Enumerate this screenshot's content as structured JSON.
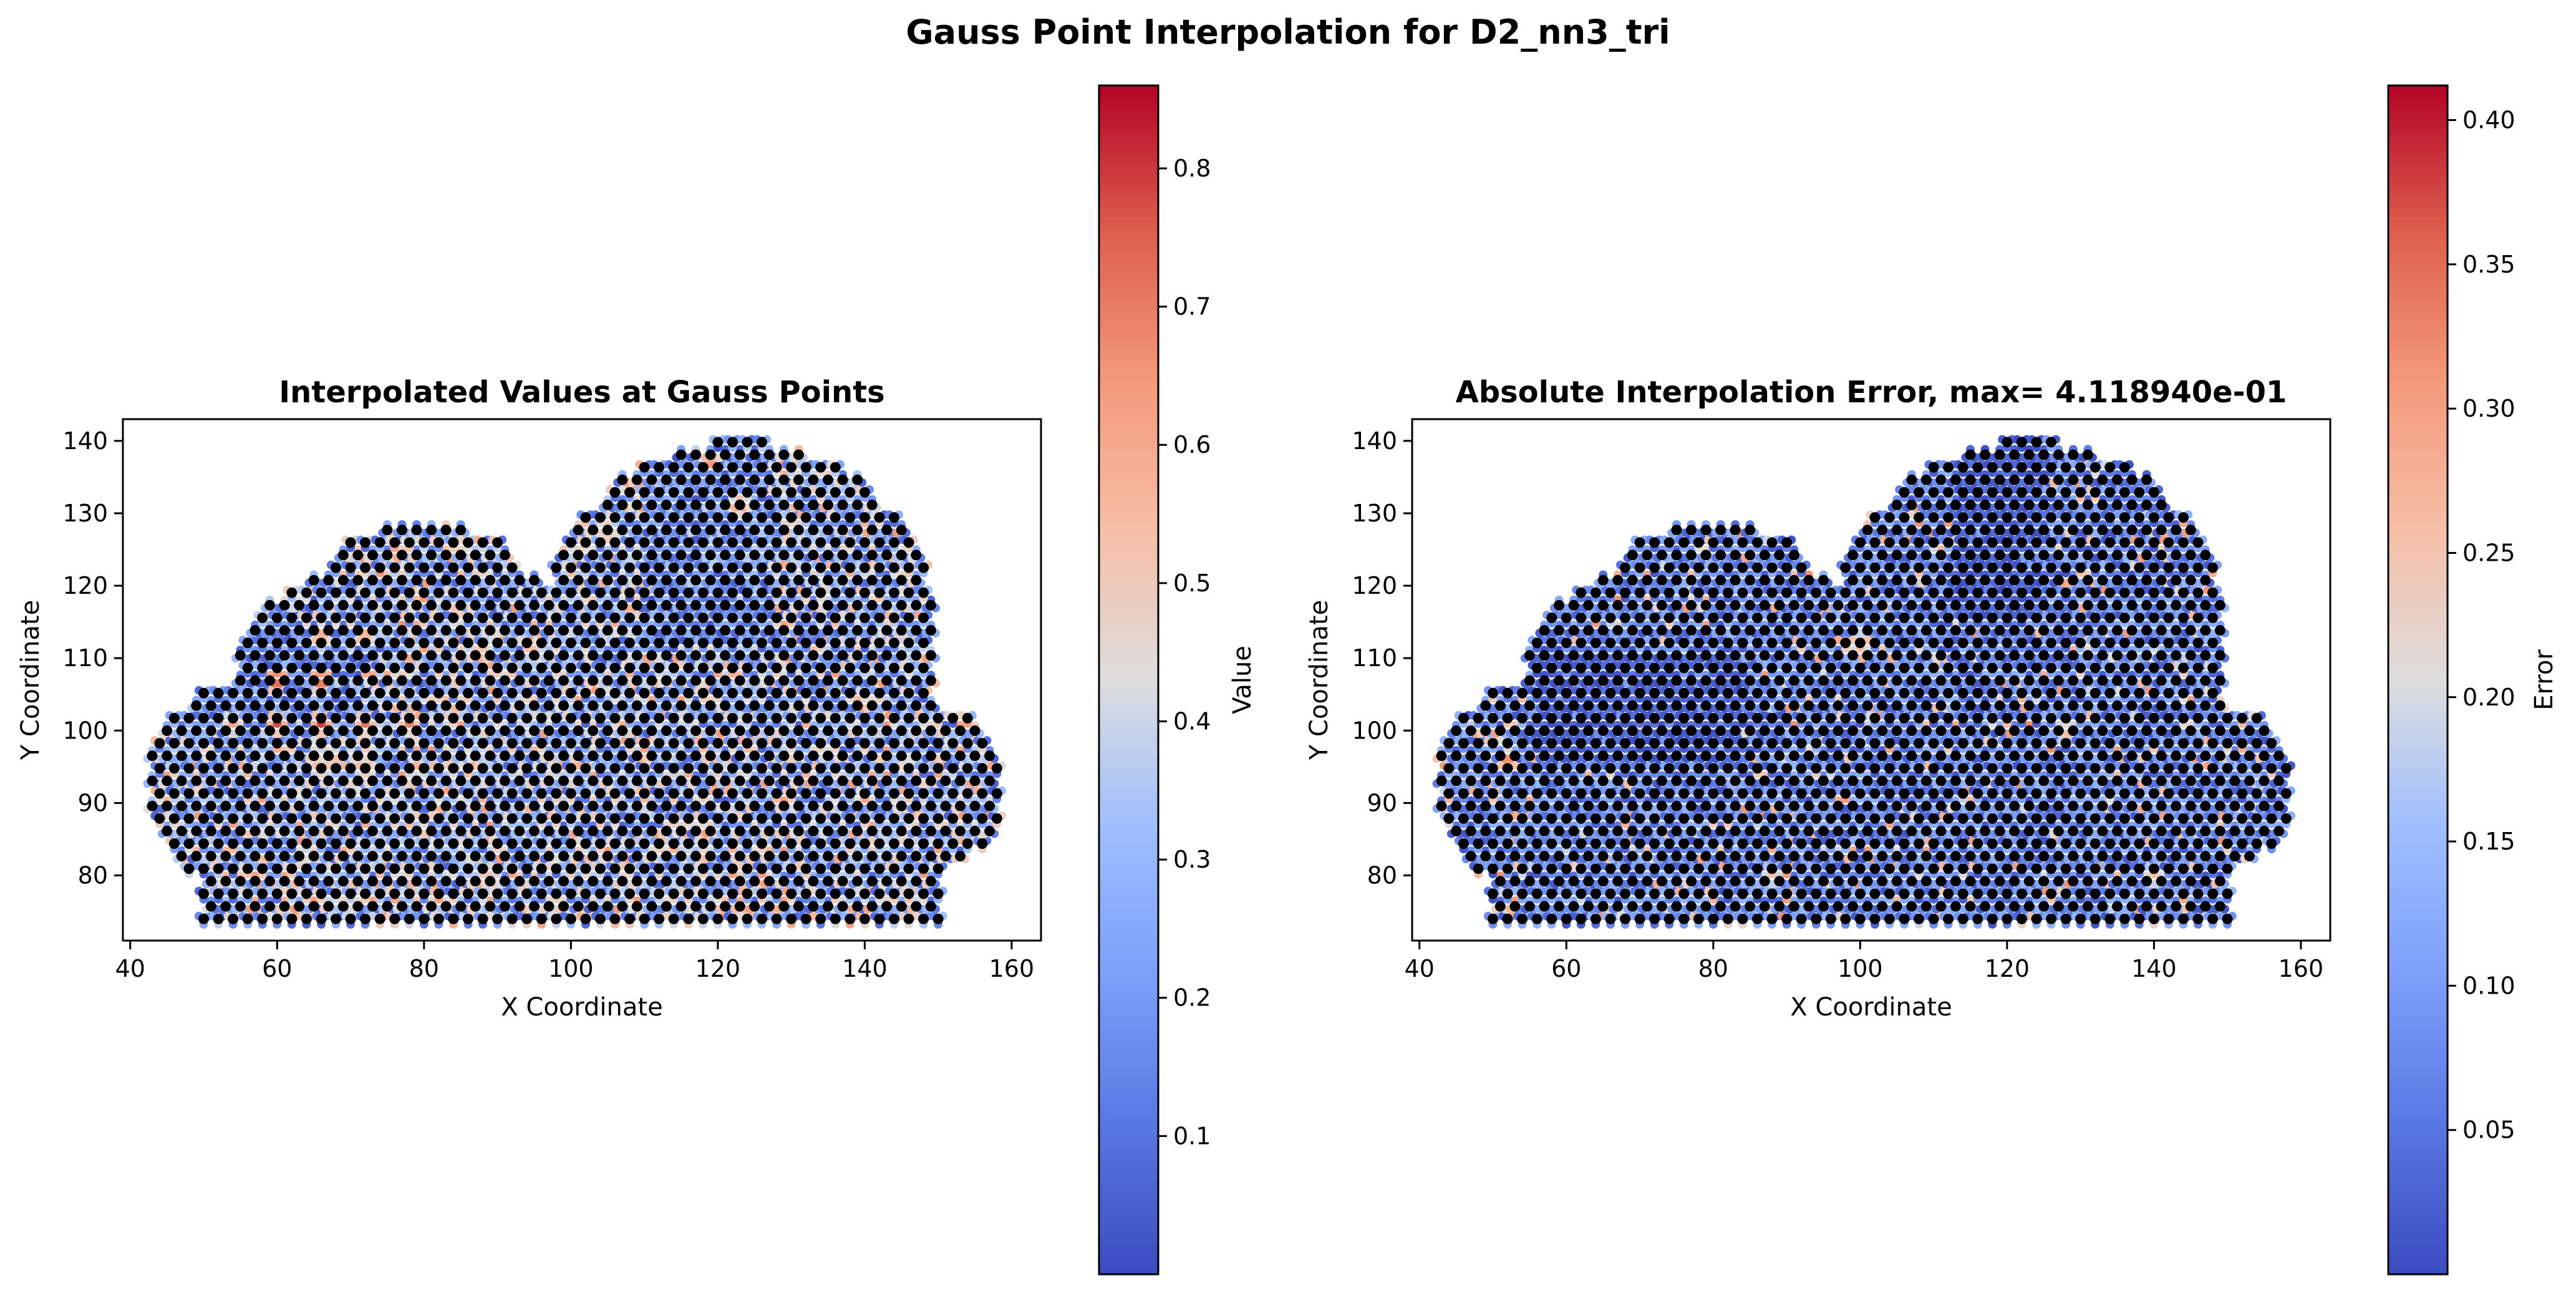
{
  "figure": {
    "title": "Gauss Point Interpolation for D2_nn3_tri"
  },
  "colormap": {
    "name": "coolwarm",
    "low": "#3b4cc0",
    "mid": "#dddddd",
    "high": "#b40426"
  },
  "chart_data": [
    {
      "type": "scatter",
      "title": "Interpolated Values at Gauss Points",
      "xlabel": "X Coordinate",
      "ylabel": "Y Coordinate",
      "xlim": [
        39,
        164
      ],
      "ylim": [
        71,
        143
      ],
      "xticks": [
        40,
        60,
        80,
        100,
        120,
        140,
        160
      ],
      "yticks": [
        80,
        90,
        100,
        110,
        120,
        130,
        140
      ],
      "grid": false,
      "domain_shape": "cloud",
      "node_color": "#000000",
      "colorbar": {
        "label": "Value",
        "range": [
          0.0,
          0.86
        ],
        "ticks": [
          0.1,
          0.2,
          0.3,
          0.4,
          0.5,
          0.6,
          0.7,
          0.8
        ]
      },
      "hotspots": [
        {
          "x": 60,
          "y": 107,
          "value": 0.85
        },
        {
          "x": 66,
          "y": 107,
          "value": 0.82
        },
        {
          "x": 60,
          "y": 101,
          "value": 0.78
        },
        {
          "x": 66,
          "y": 101,
          "value": 0.8
        },
        {
          "x": 72,
          "y": 101,
          "value": 0.72
        },
        {
          "x": 78,
          "y": 101,
          "value": 0.7
        },
        {
          "x": 66,
          "y": 113,
          "value": 0.68
        },
        {
          "x": 72,
          "y": 113,
          "value": 0.66
        },
        {
          "x": 54,
          "y": 101,
          "value": 0.62
        },
        {
          "x": 66,
          "y": 95,
          "value": 0.64
        },
        {
          "x": 72,
          "y": 95,
          "value": 0.66
        },
        {
          "x": 79,
          "y": 95,
          "value": 0.62
        },
        {
          "x": 119,
          "y": 137,
          "value": 0.72
        },
        {
          "x": 123,
          "y": 131,
          "value": 0.68
        }
      ]
    },
    {
      "type": "scatter",
      "title": "Absolute Interpolation Error, max= 4.118940e-01",
      "xlabel": "X Coordinate",
      "ylabel": "Y Coordinate",
      "xlim": [
        39,
        164
      ],
      "ylim": [
        71,
        143
      ],
      "xticks": [
        40,
        60,
        80,
        100,
        120,
        140,
        160
      ],
      "yticks": [
        80,
        90,
        100,
        110,
        120,
        130,
        140
      ],
      "grid": false,
      "domain_shape": "cloud",
      "node_color": "#000000",
      "max_error": 0.411894,
      "colorbar": {
        "label": "Error",
        "range": [
          0.0,
          0.412
        ],
        "ticks": [
          0.05,
          0.1,
          0.15,
          0.2,
          0.25,
          0.3,
          0.35,
          0.4
        ]
      },
      "hotspots": [
        {
          "x": 52,
          "y": 96,
          "value": 0.35
        },
        {
          "x": 100,
          "y": 112,
          "value": 0.3
        },
        {
          "x": 128,
          "y": 100,
          "value": 0.28
        },
        {
          "x": 88,
          "y": 80,
          "value": 0.26
        },
        {
          "x": 140,
          "y": 80,
          "value": 0.27
        }
      ]
    }
  ]
}
